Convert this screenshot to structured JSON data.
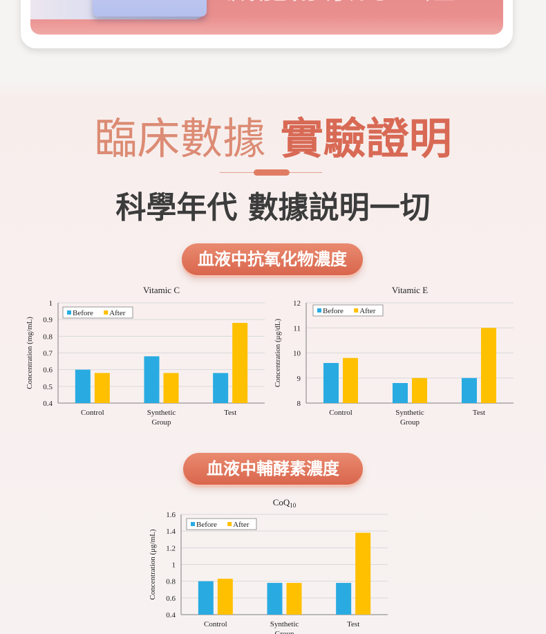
{
  "banner": {
    "text": "減肥酵素的一姐"
  },
  "heading": {
    "title_light": "臨床數據",
    "title_strong": "實驗證明",
    "subtitle": "科學年代 數據説明一切"
  },
  "sections": [
    {
      "label": "血液中抗氧化物濃度"
    },
    {
      "label": "血液中輔酵素濃度"
    }
  ],
  "colors": {
    "before": "#29abe2",
    "after": "#ffc000",
    "accent": "#d86a55"
  },
  "chart_data": [
    {
      "type": "bar",
      "title": "Vitamic C",
      "ylabel": "Concentration (mg/mL)",
      "xlabel": "",
      "categories": [
        "Control",
        "Synthetic Group",
        "Test"
      ],
      "category_lines": [
        [
          "Control"
        ],
        [
          "Synthetic",
          "Group"
        ],
        [
          "Test"
        ]
      ],
      "ylim": [
        0.4,
        1
      ],
      "yticks": [
        0.4,
        0.5,
        0.6,
        0.7,
        0.8,
        0.9,
        1
      ],
      "ytick_labels": [
        "0.4",
        "0.5",
        "0.6",
        "0.7",
        "0.8",
        "0.9",
        "1"
      ],
      "grid": true,
      "legend": "top-left",
      "series": [
        {
          "name": "Before",
          "values": [
            0.6,
            0.68,
            0.58
          ]
        },
        {
          "name": "After",
          "values": [
            0.58,
            0.58,
            0.88
          ]
        }
      ]
    },
    {
      "type": "bar",
      "title": "Vitamic E",
      "ylabel": "Concentration (μg/dL)",
      "xlabel": "",
      "categories": [
        "Control",
        "Synthetic Group",
        "Test"
      ],
      "category_lines": [
        [
          "Control"
        ],
        [
          "Synthetic",
          "Group"
        ],
        [
          "Test"
        ]
      ],
      "ylim": [
        8,
        12
      ],
      "yticks": [
        8,
        9,
        10,
        11,
        12
      ],
      "ytick_labels": [
        "8",
        "9",
        "10",
        "11",
        "12"
      ],
      "grid": true,
      "legend": "top-left",
      "series": [
        {
          "name": "Before",
          "values": [
            9.6,
            8.8,
            9.0
          ]
        },
        {
          "name": "After",
          "values": [
            9.8,
            9.0,
            11.0
          ]
        }
      ]
    },
    {
      "type": "bar",
      "title": "CoQ",
      "title_sub": "10",
      "ylabel": "Concentration (μg/mL)",
      "xlabel": "",
      "categories": [
        "Control",
        "Synthetic Group",
        "Test"
      ],
      "category_lines": [
        [
          "Control"
        ],
        [
          "Synthetic",
          "Group"
        ],
        [
          "Test"
        ]
      ],
      "ylim": [
        0.4,
        1.6
      ],
      "yticks": [
        0.4,
        0.6,
        0.8,
        1,
        1.2,
        1.4,
        1.6
      ],
      "ytick_labels": [
        "0.4",
        "0.6",
        "0.8",
        "1",
        "1.2",
        "1.4",
        "1.6"
      ],
      "grid": true,
      "legend": "top-left",
      "series": [
        {
          "name": "Before",
          "values": [
            0.8,
            0.78,
            0.78
          ]
        },
        {
          "name": "After",
          "values": [
            0.83,
            0.78,
            1.38
          ]
        }
      ]
    }
  ]
}
